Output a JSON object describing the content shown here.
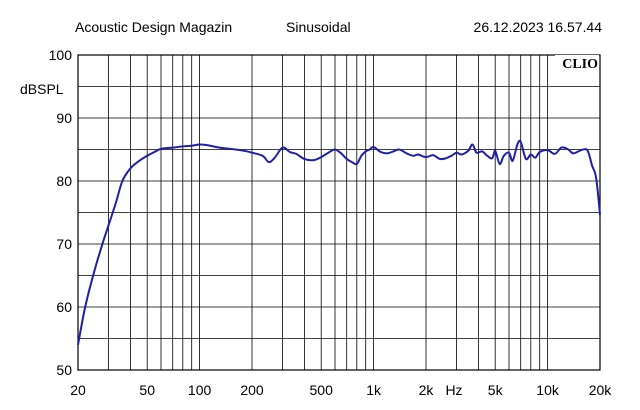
{
  "header": {
    "source": "Acoustic Design Magazin",
    "mode": "Sinusoidal",
    "timestamp": "26.12.2023 16.57.44"
  },
  "brand": "CLIO",
  "chart_data": {
    "type": "line",
    "x_scale": "log",
    "xlim": [
      20,
      20000
    ],
    "ylim": [
      50,
      100
    ],
    "ylabel": "dBSPL",
    "xlabel": "Hz",
    "grid": true,
    "line_color": "#1f1fa8",
    "grid_color": "#000000",
    "x_ticks": [
      {
        "value": 20,
        "label": "20"
      },
      {
        "value": 50,
        "label": "50"
      },
      {
        "value": 100,
        "label": "100"
      },
      {
        "value": 200,
        "label": "200"
      },
      {
        "value": 500,
        "label": "500"
      },
      {
        "value": 1000,
        "label": "1k"
      },
      {
        "value": 2000,
        "label": "2k"
      },
      {
        "value": 5000,
        "label": "5k"
      },
      {
        "value": 10000,
        "label": "10k"
      },
      {
        "value": 20000,
        "label": "20k"
      }
    ],
    "y_ticks": [
      {
        "value": 100,
        "label": "100"
      },
      {
        "value": 90,
        "label": "90"
      },
      {
        "value": 80,
        "label": "80"
      },
      {
        "value": 70,
        "label": "70"
      },
      {
        "value": 60,
        "label": "60"
      },
      {
        "value": 50,
        "label": "50"
      }
    ],
    "series": [
      {
        "x": [
          20,
          22,
          25,
          28,
          30,
          33,
          36,
          40,
          45,
          50,
          55,
          60,
          70,
          80,
          90,
          100,
          110,
          130,
          150,
          180,
          200,
          230,
          250,
          270,
          300,
          330,
          360,
          400,
          450,
          500,
          550,
          600,
          650,
          700,
          750,
          800,
          850,
          900,
          950,
          1000,
          1100,
          1200,
          1300,
          1400,
          1500,
          1600,
          1700,
          1800,
          2000,
          2200,
          2400,
          2600,
          2800,
          3000,
          3200,
          3500,
          3700,
          3900,
          4200,
          4500,
          4800,
          5000,
          5300,
          5600,
          6000,
          6300,
          6700,
          7000,
          7500,
          8000,
          8500,
          9000,
          10000,
          11000,
          12000,
          13000,
          14000,
          15000,
          16000,
          17000,
          18000,
          19000,
          20000
        ],
        "y": [
          54,
          60,
          66,
          70.5,
          73,
          76.5,
          80,
          82,
          83.2,
          84,
          84.6,
          85.1,
          85.3,
          85.5,
          85.6,
          85.8,
          85.7,
          85.3,
          85.1,
          84.8,
          84.5,
          84,
          83,
          83.7,
          85.3,
          84.6,
          84.3,
          83.5,
          83.3,
          83.8,
          84.5,
          85,
          84.4,
          83.5,
          83,
          82.7,
          84,
          84.7,
          85,
          85.4,
          84.6,
          84.4,
          84.7,
          85,
          84.6,
          84.2,
          84,
          84.2,
          83.8,
          84.1,
          83.5,
          83.6,
          84,
          84.5,
          84.2,
          84.8,
          85.8,
          84.5,
          84.7,
          84,
          83.6,
          84.8,
          82.7,
          84,
          84.5,
          83.2,
          85.8,
          86.2,
          83.5,
          84.2,
          83.7,
          84.6,
          84.9,
          84.3,
          85.3,
          85.1,
          84.4,
          84.7,
          85,
          84.8,
          82.5,
          80.5,
          74.6
        ]
      }
    ]
  }
}
